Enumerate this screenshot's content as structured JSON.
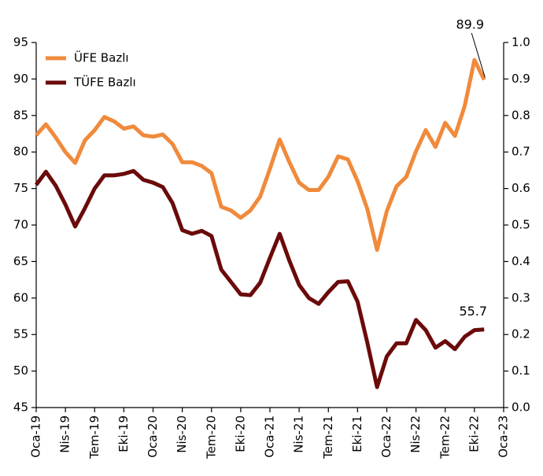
{
  "chart_data": {
    "type": "line",
    "categories": [
      "Oca-19",
      null,
      null,
      "Nis-19",
      null,
      null,
      "Tem-19",
      null,
      null,
      "Eki-19",
      null,
      null,
      "Oca-20",
      null,
      null,
      "Nis-20",
      null,
      null,
      "Tem-20",
      null,
      null,
      "Eki-20",
      null,
      null,
      "Oca-21",
      null,
      null,
      "Nis-21",
      null,
      null,
      "Tem-21",
      null,
      null,
      "Eki-21",
      null,
      null,
      "Oca-22",
      null,
      null,
      "Nis-22",
      null,
      null,
      "Tem-22",
      null,
      null,
      "Eki-22",
      null,
      null,
      "Oca-23"
    ],
    "series": [
      {
        "name": "ÜFE Bazlı",
        "color": "#f08a3c",
        "values": [
          82.3,
          83.8,
          82.0,
          80.0,
          78.5,
          81.6,
          83.0,
          84.8,
          84.2,
          83.2,
          83.5,
          82.3,
          82.1,
          82.4,
          81.1,
          78.6,
          78.6,
          78.1,
          77.1,
          72.5,
          72.0,
          71.0,
          72.0,
          73.9,
          77.7,
          81.7,
          78.6,
          75.8,
          74.8,
          74.8,
          76.6,
          79.4,
          79.0,
          76.0,
          72.2,
          66.6,
          71.9,
          75.3,
          76.6,
          80.1,
          83.0,
          80.7,
          84.0,
          82.2,
          86.3,
          92.6,
          89.9,
          null,
          null
        ]
      },
      {
        "name": "TÜFE Bazlı",
        "color": "#6b0a0a",
        "values": [
          75.5,
          77.3,
          75.4,
          72.8,
          69.8,
          72.3,
          75.0,
          76.8,
          76.8,
          77.0,
          77.4,
          76.2,
          75.8,
          75.2,
          73.0,
          69.3,
          68.8,
          69.2,
          68.5,
          63.9,
          62.2,
          60.5,
          60.4,
          62.1,
          65.5,
          68.8,
          65.1,
          61.8,
          60.0,
          59.2,
          60.8,
          62.2,
          62.3,
          59.5,
          53.9,
          47.8,
          52.0,
          53.8,
          53.8,
          57.0,
          55.6,
          53.2,
          54.1,
          53.0,
          54.7,
          55.6,
          55.7,
          null,
          null
        ]
      }
    ],
    "ylim": [
      45,
      95
    ],
    "yticks": [
      45,
      50,
      55,
      60,
      65,
      70,
      75,
      80,
      85,
      90,
      95
    ],
    "y2lim": [
      0,
      1
    ],
    "y2ticks": [
      {
        "value": 0,
        "label": "0.0"
      },
      0.1,
      0.2,
      0.3,
      0.4,
      0.5,
      0.6,
      0.7,
      0.8,
      0.9,
      {
        "value": 1,
        "label": "1.0"
      }
    ],
    "legend": "upper left",
    "grid": false
  }
}
